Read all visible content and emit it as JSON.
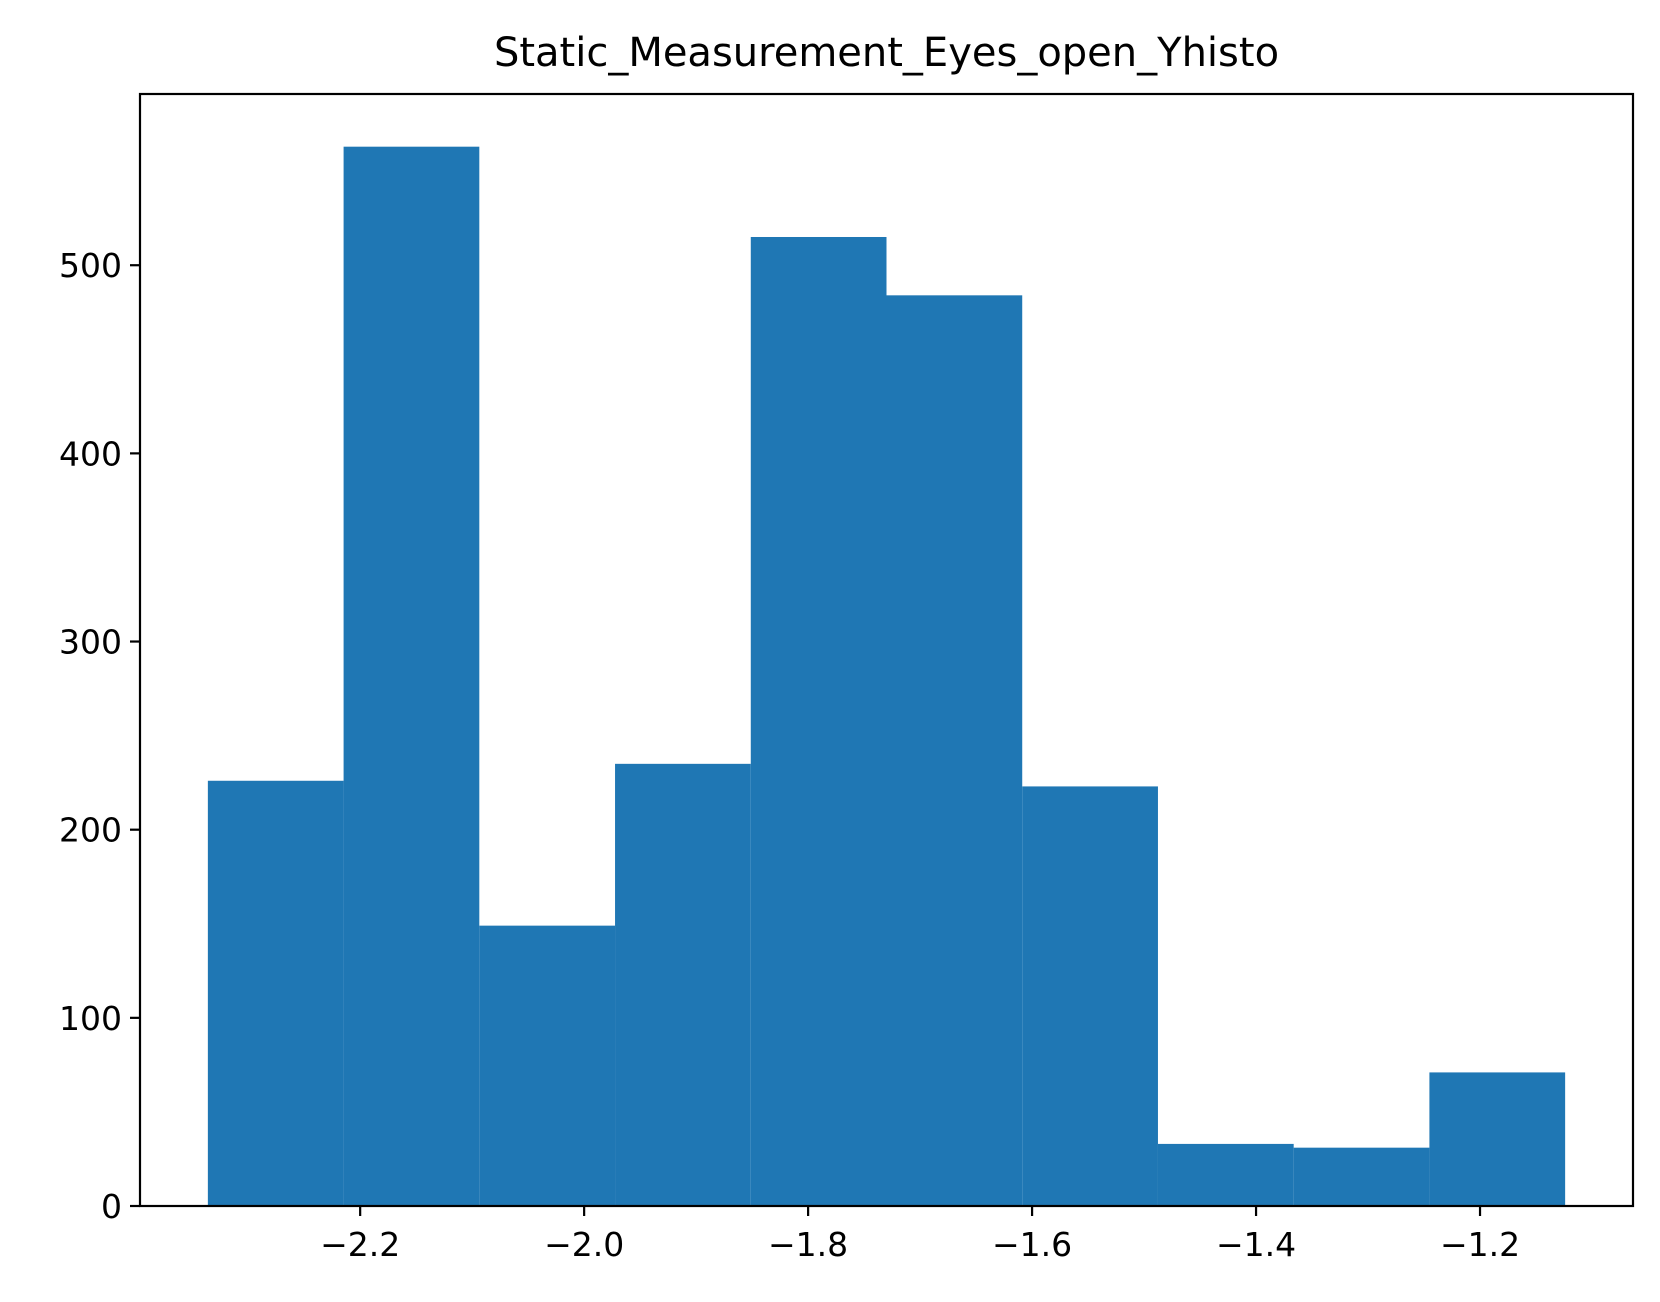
{
  "chart_data": {
    "type": "bar",
    "title": "Static_Measurement_Eyes_open_Yhisto",
    "xlabel": "",
    "ylabel": "",
    "bin_edges": [
      -2.336,
      -2.2148,
      -2.0936,
      -1.9724,
      -1.8512,
      -1.73,
      -1.6088,
      -1.4876,
      -1.3664,
      -1.2452,
      -1.124
    ],
    "values": [
      226,
      563,
      149,
      235,
      515,
      484,
      223,
      33,
      31,
      71
    ],
    "xlim": [
      -2.3966,
      -1.0634
    ],
    "ylim": [
      0,
      591
    ],
    "x_ticks": [
      {
        "value": -2.2,
        "label": "−2.2"
      },
      {
        "value": -2.0,
        "label": "−2.0"
      },
      {
        "value": -1.8,
        "label": "−1.8"
      },
      {
        "value": -1.6,
        "label": "−1.6"
      },
      {
        "value": -1.4,
        "label": "−1.4"
      },
      {
        "value": -1.2,
        "label": "−1.2"
      }
    ],
    "y_ticks": [
      {
        "value": 0,
        "label": "0"
      },
      {
        "value": 100,
        "label": "100"
      },
      {
        "value": 200,
        "label": "200"
      },
      {
        "value": 300,
        "label": "300"
      },
      {
        "value": 400,
        "label": "400"
      },
      {
        "value": 500,
        "label": "500"
      }
    ],
    "grid": false,
    "bar_color": "#1f77b4"
  }
}
